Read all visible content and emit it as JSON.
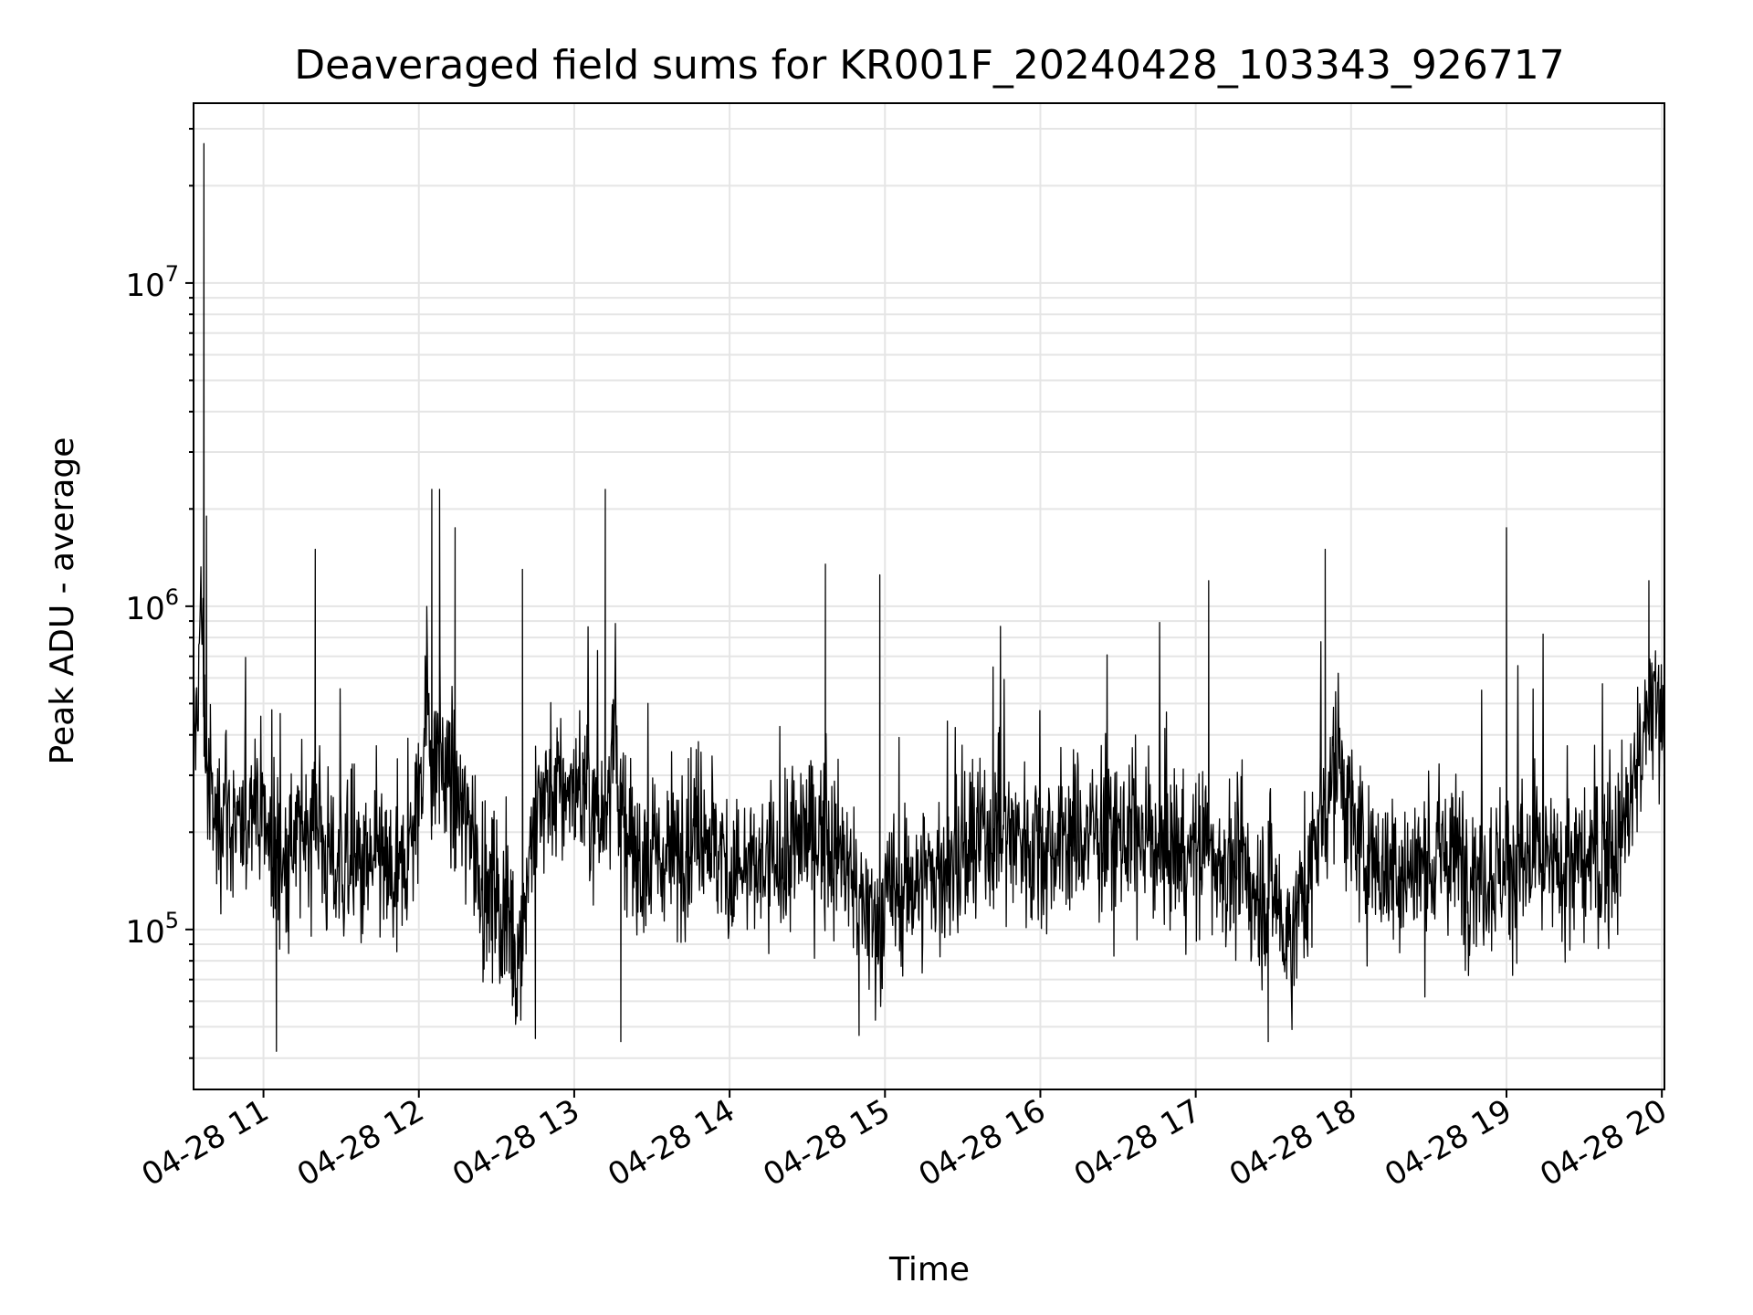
{
  "chart_data": {
    "type": "line",
    "title": "Deaveraged field sums for KR001F_20240428_103343_926717",
    "xlabel": "Time",
    "ylabel": "Peak ADU - average",
    "yscale": "log",
    "ylim": [
      32000,
      36000000
    ],
    "xlim": [
      "2024-04-28 10:33",
      "2024-04-28 20:01"
    ],
    "x_ticks": [
      "04-28 11",
      "04-28 12",
      "04-28 13",
      "04-28 14",
      "04-28 15",
      "04-28 16",
      "04-28 17",
      "04-28 18",
      "04-28 19",
      "04-28 20"
    ],
    "y_ticks": [
      {
        "base": "10",
        "exp": "5",
        "value": 100000
      },
      {
        "base": "10",
        "exp": "6",
        "value": 1000000
      },
      {
        "base": "10",
        "exp": "7",
        "value": 10000000
      }
    ],
    "grid": true,
    "line_color": "#000000",
    "grid_color": "#e5e5e5",
    "series": [
      {
        "x": [
          "2024-04-28 10:33",
          "2024-04-28 10:36",
          "2024-04-28 10:38",
          "2024-04-28 10:40",
          "2024-04-28 10:42",
          "2024-04-28 10:45",
          "2024-04-28 10:48",
          "2024-04-28 10:52",
          "2024-04-28 10:56",
          "2024-04-28 11:00",
          "2024-04-28 11:04",
          "2024-04-28 11:07",
          "2024-04-28 11:10",
          "2024-04-28 11:15",
          "2024-04-28 11:20",
          "2024-04-28 11:25",
          "2024-04-28 11:30",
          "2024-04-28 11:35",
          "2024-04-28 11:40",
          "2024-04-28 11:45",
          "2024-04-28 11:50",
          "2024-04-28 11:55",
          "2024-04-28 12:00",
          "2024-04-28 12:03",
          "2024-04-28 12:05",
          "2024-04-28 12:08",
          "2024-04-28 12:11",
          "2024-04-28 12:15",
          "2024-04-28 12:20",
          "2024-04-28 12:25",
          "2024-04-28 12:30",
          "2024-04-28 12:35",
          "2024-04-28 12:38",
          "2024-04-28 12:42",
          "2024-04-28 12:46",
          "2024-04-28 12:50",
          "2024-04-28 12:55",
          "2024-04-28 13:00",
          "2024-04-28 13:06",
          "2024-04-28 13:10",
          "2024-04-28 13:15",
          "2024-04-28 13:20",
          "2024-04-28 13:30",
          "2024-04-28 13:40",
          "2024-04-28 13:50",
          "2024-04-28 14:00",
          "2024-04-28 14:10",
          "2024-04-28 14:20",
          "2024-04-28 14:30",
          "2024-04-28 14:35",
          "2024-04-28 14:40",
          "2024-04-28 14:45",
          "2024-04-28 14:50",
          "2024-04-28 14:55",
          "2024-04-28 15:00",
          "2024-04-28 15:10",
          "2024-04-28 15:20",
          "2024-04-28 15:30",
          "2024-04-28 15:40",
          "2024-04-28 15:50",
          "2024-04-28 16:00",
          "2024-04-28 16:20",
          "2024-04-28 16:40",
          "2024-04-28 17:00",
          "2024-04-28 17:05",
          "2024-04-28 17:15",
          "2024-04-28 17:25",
          "2024-04-28 17:30",
          "2024-04-28 17:35",
          "2024-04-28 17:40",
          "2024-04-28 17:45",
          "2024-04-28 17:50",
          "2024-04-28 17:55",
          "2024-04-28 18:00",
          "2024-04-28 18:10",
          "2024-04-28 18:20",
          "2024-04-28 18:30",
          "2024-04-28 18:40",
          "2024-04-28 18:50",
          "2024-04-28 19:00",
          "2024-04-28 19:10",
          "2024-04-28 19:20",
          "2024-04-28 19:30",
          "2024-04-28 19:40",
          "2024-04-28 19:45",
          "2024-04-28 19:50",
          "2024-04-28 19:55",
          "2024-04-28 20:00"
        ],
        "values": [
          300000,
          1000000,
          300000,
          250000,
          200000,
          280000,
          200000,
          180000,
          300000,
          220000,
          170000,
          160000,
          170000,
          200000,
          240000,
          160000,
          160000,
          150000,
          150000,
          160000,
          140000,
          150000,
          250000,
          600000,
          320000,
          350000,
          300000,
          250000,
          200000,
          140000,
          120000,
          110000,
          80000,
          150000,
          250000,
          270000,
          260000,
          280000,
          250000,
          200000,
          400000,
          180000,
          160000,
          180000,
          220000,
          150000,
          150000,
          160000,
          200000,
          200000,
          180000,
          160000,
          120000,
          100000,
          120000,
          140000,
          150000,
          160000,
          200000,
          200000,
          180000,
          200000,
          190000,
          170000,
          180000,
          150000,
          130000,
          140000,
          90000,
          120000,
          160000,
          250000,
          350000,
          200000,
          160000,
          150000,
          160000,
          170000,
          150000,
          160000,
          160000,
          150000,
          160000,
          170000,
          200000,
          300000,
          450000,
          500000
        ],
        "peaks": [
          {
            "x": "2024-04-28 10:37",
            "value": 27000000
          },
          {
            "x": "2024-04-28 10:38",
            "value": 1900000
          },
          {
            "x": "2024-04-28 11:20",
            "value": 1500000
          },
          {
            "x": "2024-04-28 12:05",
            "value": 2300000
          },
          {
            "x": "2024-04-28 12:08",
            "value": 2300000
          },
          {
            "x": "2024-04-28 12:14",
            "value": 1750000
          },
          {
            "x": "2024-04-28 12:40",
            "value": 1300000
          },
          {
            "x": "2024-04-28 13:12",
            "value": 2300000
          },
          {
            "x": "2024-04-28 14:37",
            "value": 1350000
          },
          {
            "x": "2024-04-28 14:58",
            "value": 1250000
          },
          {
            "x": "2024-04-28 17:05",
            "value": 1200000
          },
          {
            "x": "2024-04-28 17:50",
            "value": 1500000
          },
          {
            "x": "2024-04-28 19:00",
            "value": 1750000
          },
          {
            "x": "2024-04-28 19:55",
            "value": 1200000
          }
        ],
        "troughs": [
          {
            "x": "2024-04-28 11:05",
            "value": 42000
          },
          {
            "x": "2024-04-28 12:45",
            "value": 46000
          },
          {
            "x": "2024-04-28 13:18",
            "value": 45000
          },
          {
            "x": "2024-04-28 14:50",
            "value": 47000
          },
          {
            "x": "2024-04-28 17:28",
            "value": 45000
          }
        ]
      }
    ]
  }
}
